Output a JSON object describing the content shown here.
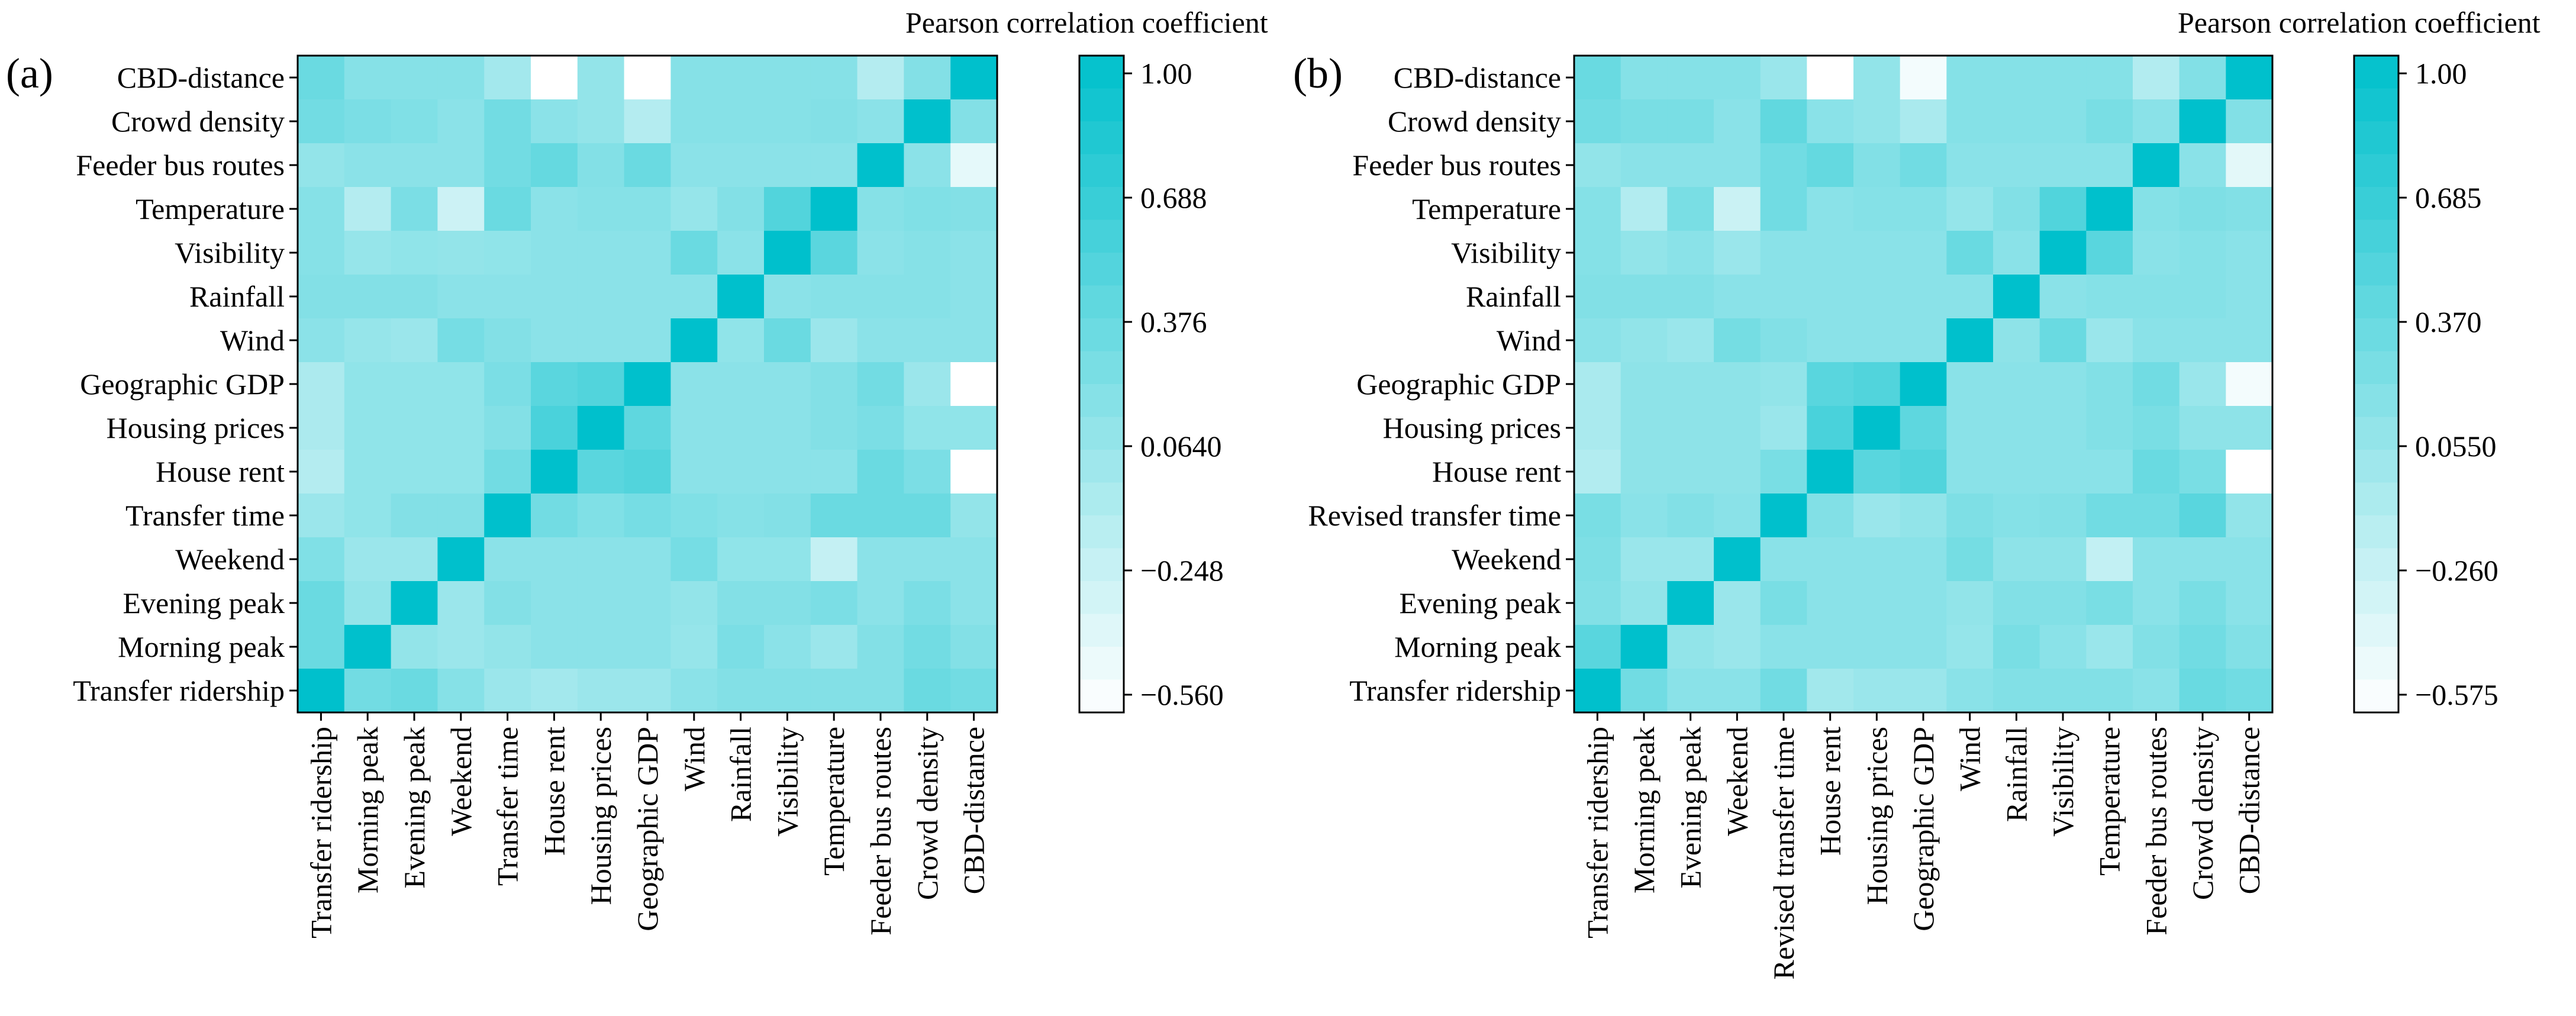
{
  "colors": {
    "high": "#00c0cc",
    "low": "#ffffff",
    "frame": "#000000"
  },
  "chart_data": [
    {
      "type": "heatmap",
      "panel_label": "(a)",
      "colorbar_title": "Pearson correlation coefficient",
      "colorbar_ticks": [
        "1.00",
        "0.688",
        "0.376",
        "0.0640",
        "−0.248",
        "−0.560"
      ],
      "vmin": -0.56,
      "vmax": 1.0,
      "x_labels": [
        "Transfer ridership",
        "Morning peak",
        "Evening peak",
        "Weekend",
        "Transfer time",
        "House rent",
        "Housing prices",
        "Geographic GDP",
        "Wind",
        "Rainfall",
        "Visibility",
        "Temperature",
        "Feeder bus routes",
        "Crowd density",
        "CBD-distance"
      ],
      "y_labels": [
        "CBD-distance",
        "Crowd density",
        "Feeder bus routes",
        "Temperature",
        "Visibility",
        "Rainfall",
        "Wind",
        "Geographic GDP",
        "Housing prices",
        "House rent",
        "Transfer time",
        "Weekend",
        "Evening peak",
        "Morning peak",
        "Transfer ridership"
      ],
      "values": [
        [
          0.35,
          0.18,
          0.18,
          0.18,
          0.0,
          -0.56,
          0.1,
          -0.56,
          0.18,
          0.18,
          0.18,
          0.18,
          -0.1,
          0.2,
          1.0
        ],
        [
          0.3,
          0.25,
          0.22,
          0.15,
          0.3,
          0.15,
          0.1,
          -0.1,
          0.18,
          0.18,
          0.18,
          0.2,
          0.15,
          1.0,
          0.2
        ],
        [
          0.1,
          0.15,
          0.15,
          0.15,
          0.3,
          0.38,
          0.2,
          0.35,
          0.15,
          0.15,
          0.15,
          0.15,
          1.0,
          0.15,
          -0.4
        ],
        [
          0.18,
          -0.1,
          0.25,
          -0.25,
          0.35,
          0.15,
          0.18,
          0.18,
          0.08,
          0.2,
          0.5,
          1.0,
          0.18,
          0.22,
          0.2
        ],
        [
          0.18,
          0.08,
          0.12,
          0.1,
          0.12,
          0.15,
          0.15,
          0.15,
          0.35,
          0.15,
          1.0,
          0.45,
          0.15,
          0.18,
          0.15
        ],
        [
          0.2,
          0.2,
          0.2,
          0.15,
          0.15,
          0.15,
          0.15,
          0.15,
          0.15,
          1.0,
          0.15,
          0.18,
          0.18,
          0.18,
          0.15
        ],
        [
          0.15,
          0.08,
          0.05,
          0.28,
          0.2,
          0.15,
          0.15,
          0.15,
          1.0,
          0.12,
          0.35,
          0.05,
          0.15,
          0.15,
          0.15
        ],
        [
          -0.05,
          0.12,
          0.12,
          0.12,
          0.25,
          0.45,
          0.5,
          1.0,
          0.15,
          0.15,
          0.15,
          0.2,
          0.3,
          0.05,
          -0.56
        ],
        [
          -0.05,
          0.12,
          0.12,
          0.12,
          0.2,
          0.55,
          1.0,
          0.42,
          0.15,
          0.15,
          0.15,
          0.2,
          0.25,
          0.12,
          0.12
        ],
        [
          -0.1,
          0.12,
          0.12,
          0.12,
          0.3,
          1.0,
          0.45,
          0.5,
          0.15,
          0.15,
          0.15,
          0.15,
          0.35,
          0.25,
          -0.56
        ],
        [
          0.05,
          0.12,
          0.2,
          0.2,
          1.0,
          0.3,
          0.22,
          0.28,
          0.22,
          0.18,
          0.2,
          0.35,
          0.35,
          0.35,
          0.1
        ],
        [
          0.22,
          0.05,
          0.05,
          1.0,
          0.15,
          0.15,
          0.15,
          0.15,
          0.28,
          0.12,
          0.12,
          -0.2,
          0.15,
          0.15,
          0.15
        ],
        [
          0.35,
          0.1,
          1.0,
          0.05,
          0.2,
          0.15,
          0.15,
          0.15,
          0.1,
          0.2,
          0.2,
          0.25,
          0.15,
          0.25,
          0.15
        ],
        [
          0.35,
          1.0,
          0.1,
          0.05,
          0.1,
          0.15,
          0.15,
          0.15,
          0.08,
          0.25,
          0.15,
          0.05,
          0.2,
          0.3,
          0.2
        ],
        [
          1.0,
          0.3,
          0.35,
          0.18,
          0.05,
          0.0,
          0.05,
          0.05,
          0.15,
          0.2,
          0.2,
          0.2,
          0.2,
          0.35,
          0.3
        ]
      ]
    },
    {
      "type": "heatmap",
      "panel_label": "(b)",
      "colorbar_title": "Pearson correlation coefficient",
      "colorbar_ticks": [
        "1.00",
        "0.685",
        "0.370",
        "0.0550",
        "−0.260",
        "−0.575"
      ],
      "vmin": -0.575,
      "vmax": 1.0,
      "x_labels": [
        "Transfer ridership",
        "Morning peak",
        "Evening peak",
        "Weekend",
        "Revised transfer time",
        "House rent",
        "Housing prices",
        "Geographic GDP",
        "Wind",
        "Rainfall",
        "Visibility",
        "Temperature",
        "Feeder bus routes",
        "Crowd density",
        "CBD-distance"
      ],
      "y_labels": [
        "CBD-distance",
        "Crowd density",
        "Feeder bus routes",
        "Temperature",
        "Visibility",
        "Rainfall",
        "Wind",
        "Geographic GDP",
        "Housing prices",
        "House rent",
        "Revised transfer time",
        "Weekend",
        "Evening peak",
        "Morning peak",
        "Transfer ridership"
      ],
      "values": [
        [
          0.35,
          0.18,
          0.18,
          0.18,
          0.05,
          -0.575,
          0.1,
          -0.5,
          0.18,
          0.18,
          0.18,
          0.18,
          -0.1,
          0.2,
          1.0
        ],
        [
          0.3,
          0.25,
          0.25,
          0.15,
          0.4,
          0.15,
          0.1,
          -0.05,
          0.18,
          0.18,
          0.18,
          0.25,
          0.15,
          1.0,
          0.2
        ],
        [
          0.1,
          0.15,
          0.15,
          0.15,
          0.3,
          0.38,
          0.2,
          0.3,
          0.15,
          0.15,
          0.15,
          0.15,
          1.0,
          0.15,
          -0.4
        ],
        [
          0.18,
          -0.1,
          0.25,
          -0.25,
          0.3,
          0.15,
          0.18,
          0.18,
          0.08,
          0.2,
          0.5,
          1.0,
          0.18,
          0.22,
          0.2
        ],
        [
          0.18,
          0.1,
          0.15,
          0.05,
          0.15,
          0.15,
          0.15,
          0.15,
          0.35,
          0.15,
          1.0,
          0.45,
          0.15,
          0.18,
          0.15
        ],
        [
          0.2,
          0.2,
          0.2,
          0.15,
          0.15,
          0.15,
          0.15,
          0.15,
          0.15,
          1.0,
          0.15,
          0.18,
          0.18,
          0.18,
          0.15
        ],
        [
          0.15,
          0.1,
          0.05,
          0.28,
          0.2,
          0.15,
          0.15,
          0.15,
          1.0,
          0.12,
          0.35,
          0.05,
          0.15,
          0.15,
          0.15
        ],
        [
          -0.05,
          0.12,
          0.12,
          0.12,
          0.1,
          0.45,
          0.5,
          1.0,
          0.15,
          0.15,
          0.15,
          0.2,
          0.3,
          0.05,
          -0.5
        ],
        [
          -0.05,
          0.12,
          0.12,
          0.12,
          0.05,
          0.55,
          1.0,
          0.42,
          0.15,
          0.15,
          0.15,
          0.2,
          0.25,
          0.12,
          0.12
        ],
        [
          -0.1,
          0.12,
          0.12,
          0.12,
          0.25,
          1.0,
          0.45,
          0.5,
          0.15,
          0.15,
          0.15,
          0.15,
          0.35,
          0.25,
          -0.575
        ],
        [
          0.25,
          0.15,
          0.2,
          0.15,
          1.0,
          0.2,
          0.05,
          0.1,
          0.22,
          0.18,
          0.2,
          0.3,
          0.3,
          0.45,
          0.1
        ],
        [
          0.22,
          0.05,
          0.05,
          1.0,
          0.15,
          0.15,
          0.15,
          0.15,
          0.28,
          0.12,
          0.12,
          -0.2,
          0.15,
          0.15,
          0.15
        ],
        [
          0.2,
          0.1,
          1.0,
          0.05,
          0.25,
          0.15,
          0.15,
          0.15,
          0.1,
          0.2,
          0.2,
          0.25,
          0.15,
          0.25,
          0.15
        ],
        [
          0.45,
          1.0,
          0.1,
          0.05,
          0.15,
          0.15,
          0.15,
          0.15,
          0.08,
          0.25,
          0.15,
          0.05,
          0.2,
          0.3,
          0.2
        ],
        [
          1.0,
          0.3,
          0.15,
          0.15,
          0.3,
          0.0,
          0.05,
          0.05,
          0.15,
          0.2,
          0.2,
          0.2,
          0.15,
          0.35,
          0.3
        ]
      ]
    }
  ]
}
